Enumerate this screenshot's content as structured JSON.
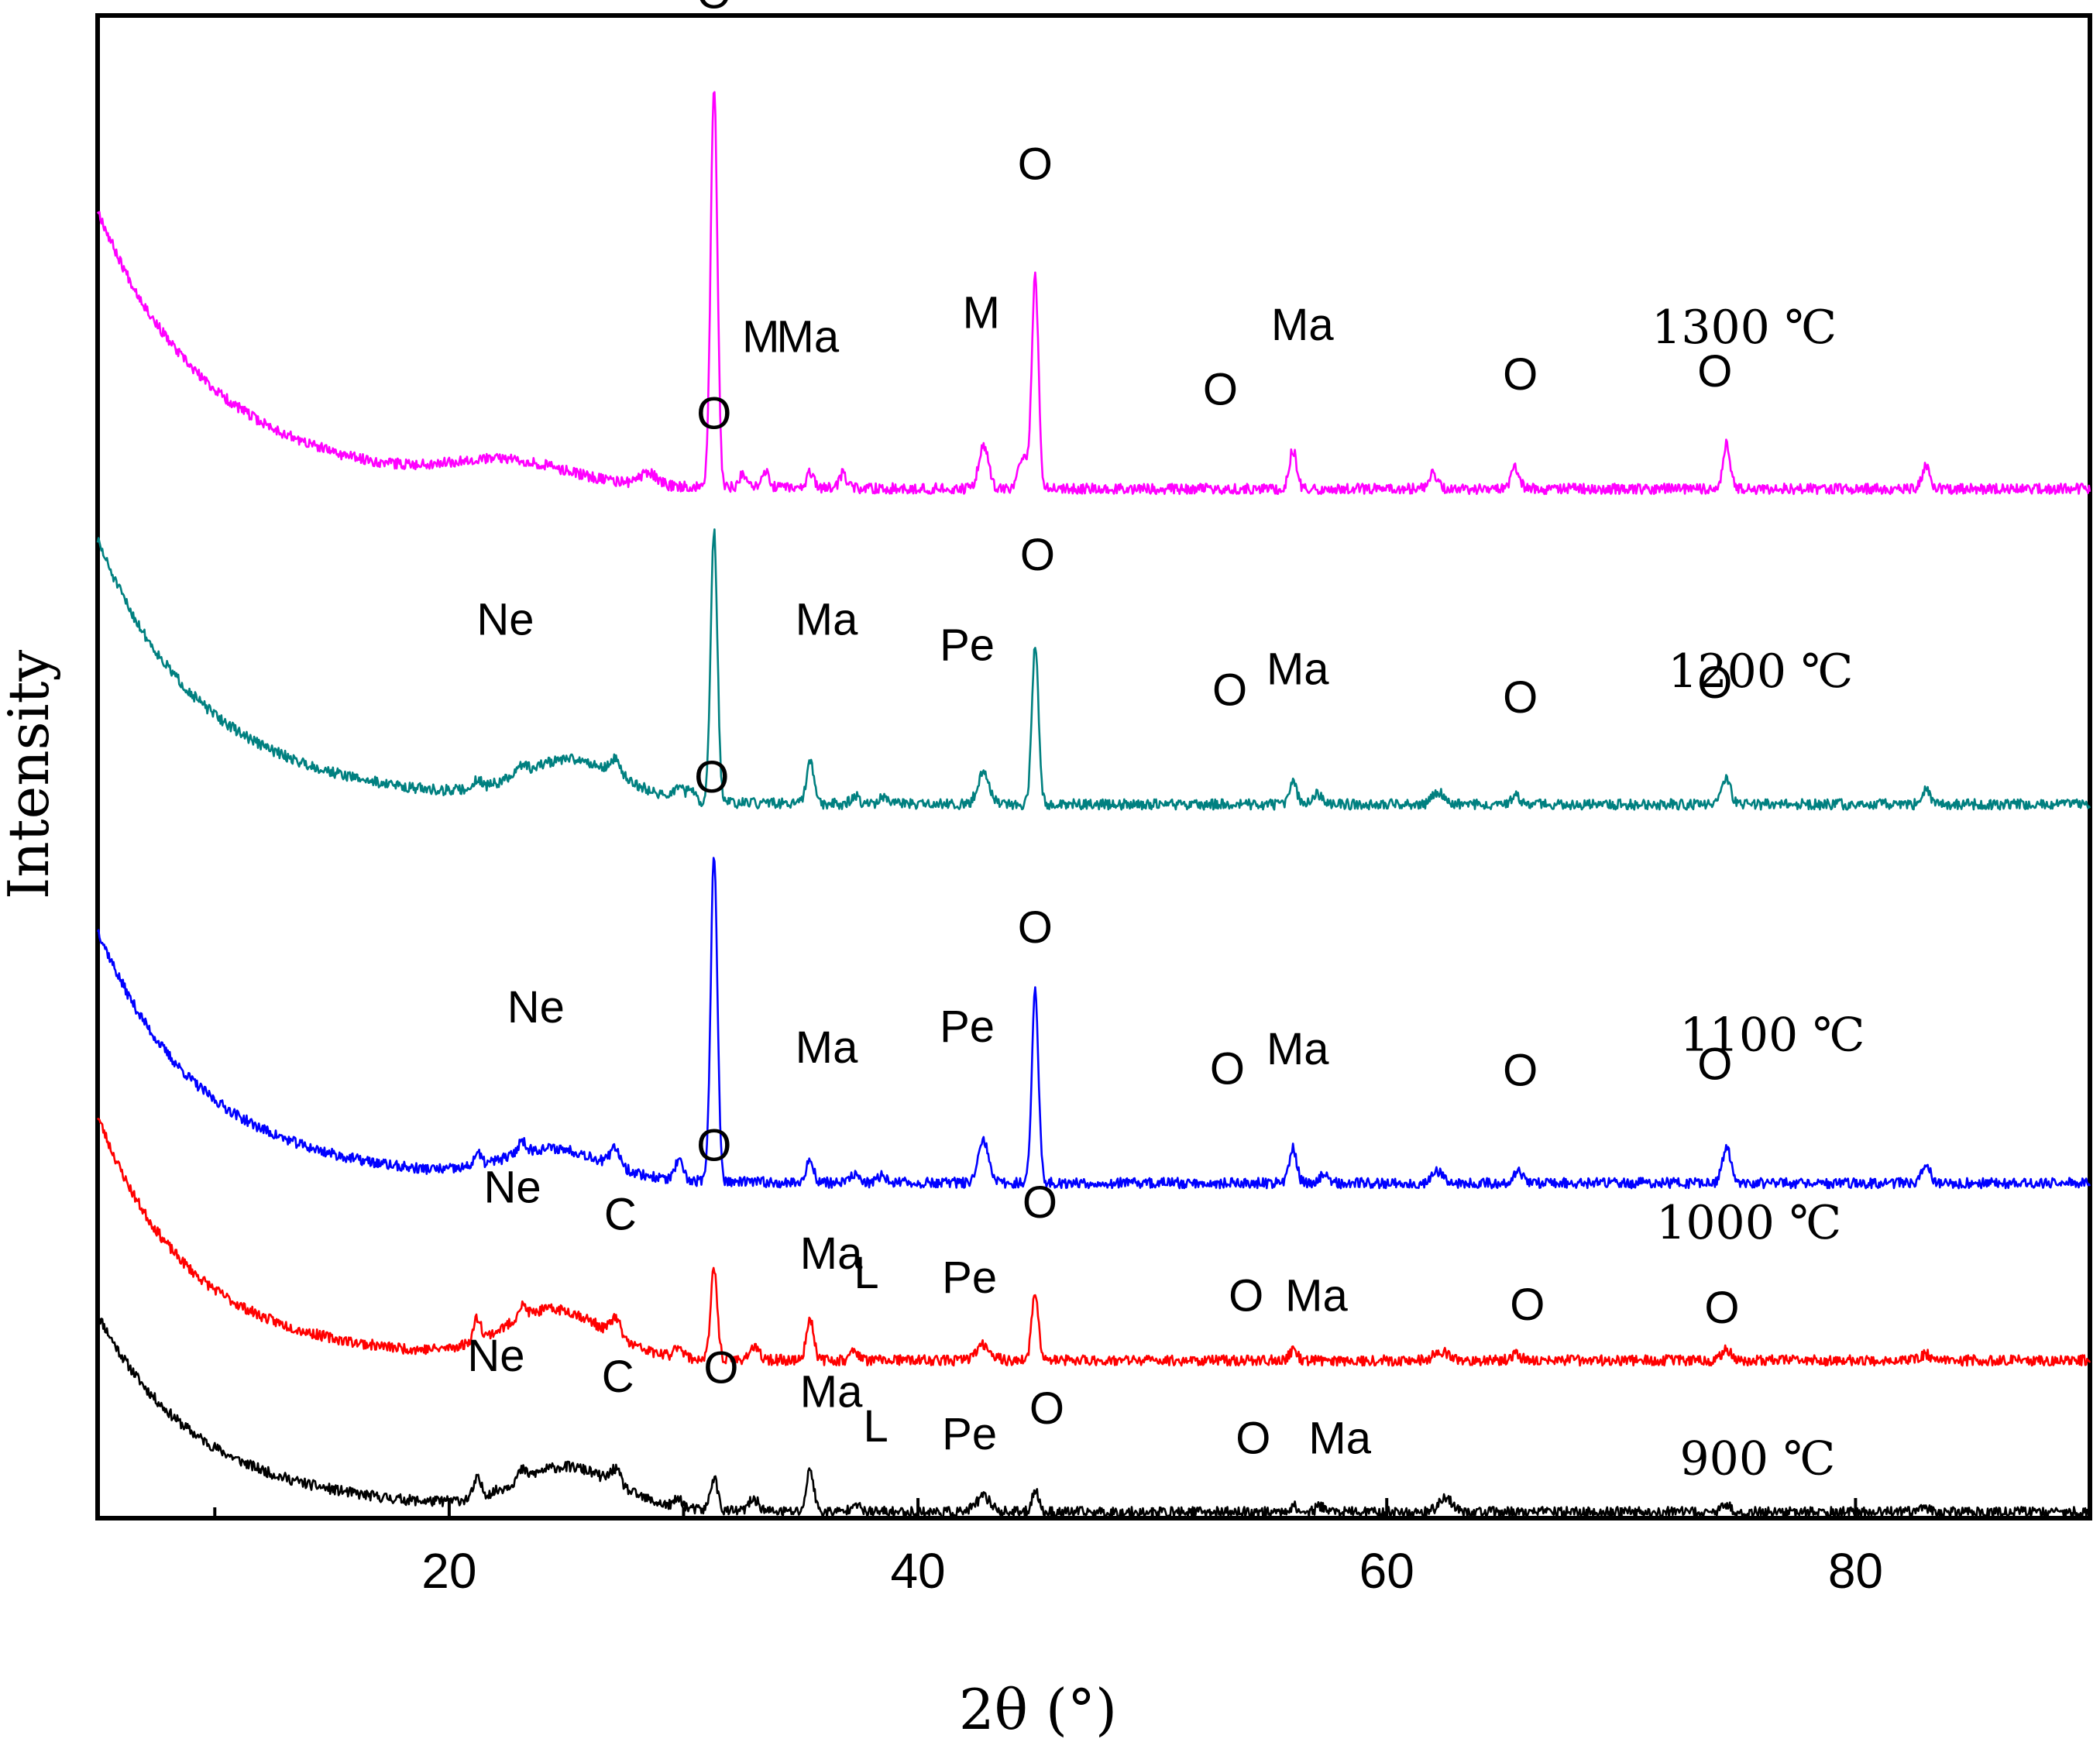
{
  "chart_data": {
    "type": "line",
    "title": "",
    "xlabel": "2θ (°)",
    "ylabel": "Intensity",
    "xlim": [
      5,
      90
    ],
    "ylim": [
      0,
      1000
    ],
    "xticks": [
      20,
      40,
      60,
      80
    ],
    "minor_xticks": [
      10,
      30,
      50,
      70,
      90
    ],
    "grid": false,
    "legend": "none",
    "series": [
      {
        "name": "900 ℃",
        "color": "#000000",
        "temp_label": "900 ℃",
        "temp_label_pos": [
          72.5,
          29
        ],
        "start": 136,
        "decay": 55,
        "decay_width": 6,
        "end": 4,
        "hump": {
          "center": 25,
          "width": 3,
          "height": 28
        },
        "noise": 3.5,
        "seed": 11,
        "peaks": [
          [
            21.2,
            12,
            0.22
          ],
          [
            23.1,
            6,
            0.25
          ],
          [
            27.1,
            10,
            0.3
          ],
          [
            29.8,
            6,
            0.25
          ],
          [
            31.3,
            22,
            0.22
          ],
          [
            33.0,
            8,
            0.3
          ],
          [
            35.4,
            28,
            0.22
          ],
          [
            37.3,
            7,
            0.22
          ],
          [
            42.8,
            10,
            0.45
          ],
          [
            45.0,
            15,
            0.2
          ],
          [
            56.0,
            4,
            0.25
          ],
          [
            57.2,
            4,
            0.3
          ],
          [
            62.5,
            10,
            0.4
          ],
          [
            74.5,
            4,
            0.3
          ],
          [
            83.0,
            3,
            0.3
          ]
        ],
        "labels": [
          {
            "text": "Ne",
            "x": 22.0,
            "y": 98
          },
          {
            "text": "C",
            "x": 27.2,
            "y": 84
          },
          {
            "text": "O",
            "x": 31.6,
            "y": 90
          },
          {
            "text": "Ma",
            "x": 36.3,
            "y": 74
          },
          {
            "text": "L",
            "x": 38.2,
            "y": 51
          },
          {
            "text": "Pe",
            "x": 42.2,
            "y": 46
          },
          {
            "text": "O",
            "x": 45.5,
            "y": 63
          },
          {
            "text": "O",
            "x": 54.3,
            "y": 43
          },
          {
            "text": "Ma",
            "x": 58.0,
            "y": 43
          }
        ]
      },
      {
        "name": "1000 ℃",
        "color": "#ff0000",
        "temp_label": "1000 ℃",
        "temp_label_pos": [
          71.5,
          186
        ],
        "start": 268,
        "decay": 62,
        "decay_width": 5.5,
        "end": 105,
        "hump": {
          "center": 24.5,
          "width": 3,
          "height": 32
        },
        "noise": 3.5,
        "seed": 23,
        "peaks": [
          [
            21.2,
            15,
            0.22
          ],
          [
            23.1,
            8,
            0.25
          ],
          [
            27.1,
            12,
            0.3
          ],
          [
            29.8,
            8,
            0.25
          ],
          [
            31.3,
            60,
            0.2
          ],
          [
            33.0,
            8,
            0.3
          ],
          [
            35.4,
            28,
            0.22
          ],
          [
            37.3,
            7,
            0.22
          ],
          [
            42.8,
            10,
            0.45
          ],
          [
            45.0,
            46,
            0.2
          ],
          [
            56.0,
            6,
            0.25
          ],
          [
            62.3,
            6,
            0.4
          ],
          [
            65.5,
            4,
            0.3
          ],
          [
            74.5,
            7,
            0.3
          ],
          [
            83.0,
            4,
            0.3
          ]
        ],
        "labels": [
          {
            "text": "Ne",
            "x": 22.7,
            "y": 210
          },
          {
            "text": "C",
            "x": 27.3,
            "y": 192
          },
          {
            "text": "O",
            "x": 31.3,
            "y": 238
          },
          {
            "text": "Ma",
            "x": 36.3,
            "y": 166
          },
          {
            "text": "L",
            "x": 37.8,
            "y": 153
          },
          {
            "text": "Pe",
            "x": 42.2,
            "y": 150
          },
          {
            "text": "O",
            "x": 45.2,
            "y": 200
          },
          {
            "text": "O",
            "x": 54.0,
            "y": 138
          },
          {
            "text": "Ma",
            "x": 57.0,
            "y": 138
          },
          {
            "text": "O",
            "x": 66.0,
            "y": 132
          },
          {
            "text": "O",
            "x": 74.3,
            "y": 130
          }
        ]
      },
      {
        "name": "1100 ℃",
        "color": "#0000ff",
        "temp_label": "1100 ℃",
        "temp_label_pos": [
          72.5,
          311
        ],
        "start": 392,
        "decay": 100,
        "decay_width": 5.5,
        "end": 223,
        "hump": {
          "center": 24.5,
          "width": 3,
          "height": 20
        },
        "noise": 3.5,
        "seed": 37,
        "peaks": [
          [
            21.2,
            8,
            0.22
          ],
          [
            23.1,
            8,
            0.25
          ],
          [
            27.1,
            12,
            0.3
          ],
          [
            29.8,
            12,
            0.25
          ],
          [
            31.3,
            218,
            0.2
          ],
          [
            35.4,
            15,
            0.22
          ],
          [
            37.3,
            6,
            0.22
          ],
          [
            38.5,
            5,
            0.25
          ],
          [
            42.8,
            28,
            0.3
          ],
          [
            45.0,
            128,
            0.2
          ],
          [
            56.0,
            24,
            0.22
          ],
          [
            57.3,
            5,
            0.3
          ],
          [
            62.2,
            8,
            0.35
          ],
          [
            65.6,
            9,
            0.25
          ],
          [
            74.5,
            25,
            0.25
          ],
          [
            83.0,
            14,
            0.25
          ]
        ],
        "labels": [
          {
            "text": "Ne",
            "x": 23.7,
            "y": 330
          },
          {
            "text": "O",
            "x": 31.2,
            "y": 483
          },
          {
            "text": "Ma",
            "x": 36.1,
            "y": 303
          },
          {
            "text": "Pe",
            "x": 42.1,
            "y": 317
          },
          {
            "text": "O",
            "x": 45.0,
            "y": 383
          },
          {
            "text": "O",
            "x": 53.2,
            "y": 289
          },
          {
            "text": "Ma",
            "x": 56.2,
            "y": 302
          },
          {
            "text": "O",
            "x": 65.7,
            "y": 288
          },
          {
            "text": "O",
            "x": 74.0,
            "y": 292
          }
        ]
      },
      {
        "name": "1200 ℃",
        "color": "#008080",
        "temp_label": "1200 ℃",
        "temp_label_pos": [
          72.0,
          553
        ],
        "start": 651,
        "decay": 115,
        "decay_width": 5.5,
        "end": 475,
        "hump": {
          "center": 25.2,
          "width": 3,
          "height": 27
        },
        "noise": 3.5,
        "seed": 51,
        "peaks": [
          [
            21.2,
            6,
            0.22
          ],
          [
            23.1,
            6,
            0.25
          ],
          [
            27.1,
            10,
            0.3
          ],
          [
            29.8,
            9,
            0.25
          ],
          [
            30.3,
            8,
            0.2
          ],
          [
            31.3,
            180,
            0.2
          ],
          [
            35.4,
            28,
            0.22
          ],
          [
            37.3,
            6,
            0.22
          ],
          [
            38.5,
            4,
            0.25
          ],
          [
            42.8,
            22,
            0.35
          ],
          [
            45.0,
            104,
            0.2
          ],
          [
            56.0,
            16,
            0.22
          ],
          [
            57.0,
            7,
            0.3
          ],
          [
            62.2,
            8,
            0.35
          ],
          [
            65.5,
            6,
            0.25
          ],
          [
            74.5,
            18,
            0.25
          ],
          [
            83.0,
            10,
            0.25
          ]
        ],
        "labels": [
          {
            "text": "Ne",
            "x": 22.4,
            "y": 588
          },
          {
            "text": "O",
            "x": 31.3,
            "y": 725
          },
          {
            "text": "Ma",
            "x": 36.1,
            "y": 588
          },
          {
            "text": "Pe",
            "x": 42.1,
            "y": 571
          },
          {
            "text": "O",
            "x": 45.1,
            "y": 631
          },
          {
            "text": "O",
            "x": 53.3,
            "y": 541
          },
          {
            "text": "Ma",
            "x": 56.2,
            "y": 555
          },
          {
            "text": "O",
            "x": 65.7,
            "y": 536
          },
          {
            "text": "O",
            "x": 74.0,
            "y": 546
          }
        ]
      },
      {
        "name": "1300 ℃",
        "color": "#ff00ff",
        "temp_label": "1300 ℃",
        "temp_label_pos": [
          71.3,
          782
        ],
        "start": 871,
        "decay": 138,
        "decay_width": 5.5,
        "end": 685,
        "hump": {
          "center": 22.5,
          "width": 3.5,
          "height": 14
        },
        "noise": 3.5,
        "seed": 67,
        "peaks": [
          [
            28.5,
            8,
            0.5
          ],
          [
            31.3,
            268,
            0.2
          ],
          [
            32.5,
            8,
            0.2
          ],
          [
            33.5,
            10,
            0.22
          ],
          [
            35.4,
            10,
            0.22
          ],
          [
            36.8,
            10,
            0.2
          ],
          [
            42.8,
            28,
            0.3
          ],
          [
            44.5,
            20,
            0.3
          ],
          [
            45.0,
            140,
            0.2
          ],
          [
            56.0,
            26,
            0.22
          ],
          [
            62.0,
            10,
            0.25
          ],
          [
            65.5,
            14,
            0.25
          ],
          [
            74.5,
            30,
            0.22
          ],
          [
            83.0,
            16,
            0.22
          ]
        ],
        "labels": [
          {
            "text": "O",
            "x": 31.3,
            "y": 1005
          },
          {
            "text": "M",
            "x": 33.3,
            "y": 776
          },
          {
            "text": "Ma",
            "x": 35.3,
            "y": 776
          },
          {
            "text": "M",
            "x": 42.7,
            "y": 792
          },
          {
            "text": "O",
            "x": 45.0,
            "y": 891
          },
          {
            "text": "O",
            "x": 52.9,
            "y": 741
          },
          {
            "text": "Ma",
            "x": 56.4,
            "y": 784
          },
          {
            "text": "O",
            "x": 65.7,
            "y": 751
          },
          {
            "text": "O",
            "x": 74.0,
            "y": 753
          }
        ]
      }
    ]
  }
}
